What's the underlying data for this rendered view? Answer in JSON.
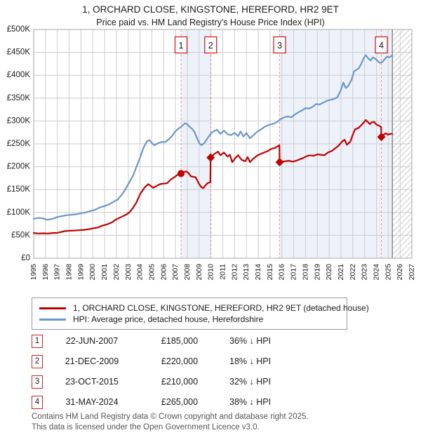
{
  "page": {
    "title": "1, ORCHARD CLOSE, KINGSTONE, HEREFORD, HR2 9ET",
    "subtitle": "Price paid vs. HM Land Registry's House Price Index (HPI)"
  },
  "legend": {
    "series1": "1, ORCHARD CLOSE, KINGSTONE, HEREFORD, HR2 9ET (detached house)",
    "series2": "HPI: Average price, detached house, Herefordshire"
  },
  "transactions": [
    {
      "num": "1",
      "date": "22-JUN-2007",
      "price": "£185,000",
      "vs_hpi": "36% ↓ HPI"
    },
    {
      "num": "2",
      "date": "21-DEC-2009",
      "price": "£220,000",
      "vs_hpi": "18% ↓ HPI"
    },
    {
      "num": "3",
      "date": "23-OCT-2015",
      "price": "£210,000",
      "vs_hpi": "32% ↓ HPI"
    },
    {
      "num": "4",
      "date": "31-MAY-2024",
      "price": "£265,000",
      "vs_hpi": "38% ↓ HPI"
    }
  ],
  "footer": {
    "line1": "Contains HM Land Registry data © Crown copyright and database right 2025.",
    "line2": "This data is licensed under the Open Government Licence v3.0."
  },
  "chart_data": {
    "type": "line",
    "title": "1, ORCHARD CLOSE, KINGSTONE, HEREFORD, HR2 9ET",
    "subtitle": "Price paid vs. HM Land Registry's House Price Index (HPI)",
    "xlim": [
      1995,
      2027
    ],
    "ylim": [
      0,
      500000
    ],
    "grid": true,
    "legend_position": "bottom",
    "xticks": [
      1995,
      1996,
      1997,
      1998,
      1999,
      2000,
      2001,
      2002,
      2003,
      2004,
      2005,
      2006,
      2007,
      2008,
      2009,
      2010,
      2011,
      2012,
      2013,
      2014,
      2015,
      2016,
      2017,
      2018,
      2019,
      2020,
      2021,
      2022,
      2023,
      2024,
      2025,
      2026,
      2027
    ],
    "yticks": [
      {
        "value": 0,
        "label": "£0"
      },
      {
        "value": 50000,
        "label": "£50K"
      },
      {
        "value": 100000,
        "label": "£100K"
      },
      {
        "value": 150000,
        "label": "£150K"
      },
      {
        "value": 200000,
        "label": "£200K"
      },
      {
        "value": 250000,
        "label": "£250K"
      },
      {
        "value": 300000,
        "label": "£300K"
      },
      {
        "value": 350000,
        "label": "£350K"
      },
      {
        "value": 400000,
        "label": "£400K"
      },
      {
        "value": 450000,
        "label": "£450K"
      },
      {
        "value": 500000,
        "label": "£500K"
      }
    ],
    "colors": {
      "property": "#c00000",
      "hpi": "#6d96c8",
      "sale_line": "#f28a8a",
      "band": "#edf2fa",
      "grid": "#cccccc",
      "border": "#aaaaaa",
      "hatch": "#c9c9c9",
      "data_end": "#888888",
      "flag_border": "#cc2222"
    },
    "series": [
      {
        "name": "1, ORCHARD CLOSE, KINGSTONE, HEREFORD, HR2 9ET (detached house)",
        "color": "#c00000",
        "points": [
          [
            1995.0,
            55000
          ],
          [
            1995.4,
            54000
          ],
          [
            1995.8,
            54500
          ],
          [
            1996.2,
            54000
          ],
          [
            1996.6,
            55000
          ],
          [
            1997.0,
            55500
          ],
          [
            1997.3,
            57000
          ],
          [
            1997.6,
            59000
          ],
          [
            1998.0,
            60000
          ],
          [
            1998.4,
            60500
          ],
          [
            1998.8,
            61000
          ],
          [
            1999.2,
            62000
          ],
          [
            1999.6,
            63000
          ],
          [
            2000.0,
            65000
          ],
          [
            2000.4,
            67000
          ],
          [
            2000.8,
            71000
          ],
          [
            2001.2,
            74000
          ],
          [
            2001.6,
            78000
          ],
          [
            2002.0,
            85000
          ],
          [
            2002.4,
            90000
          ],
          [
            2002.8,
            95000
          ],
          [
            2003.1,
            100000
          ],
          [
            2003.4,
            110000
          ],
          [
            2003.7,
            122000
          ],
          [
            2004.0,
            140000
          ],
          [
            2004.4,
            155000
          ],
          [
            2004.7,
            162000
          ],
          [
            2004.9,
            158000
          ],
          [
            2005.1,
            154000
          ],
          [
            2005.4,
            158000
          ],
          [
            2005.7,
            162000
          ],
          [
            2006.0,
            163000
          ],
          [
            2006.3,
            164000
          ],
          [
            2006.6,
            172000
          ],
          [
            2006.9,
            177000
          ],
          [
            2007.2,
            183000
          ],
          [
            2007.47,
            185000
          ],
          [
            2007.7,
            188000
          ],
          [
            2007.9,
            190000
          ],
          [
            2008.1,
            186000
          ],
          [
            2008.3,
            179000
          ],
          [
            2008.5,
            178000
          ],
          [
            2008.7,
            177000
          ],
          [
            2009.0,
            162000
          ],
          [
            2009.2,
            155000
          ],
          [
            2009.35,
            153000
          ],
          [
            2009.5,
            158000
          ],
          [
            2009.7,
            164000
          ],
          [
            2009.95,
            166000
          ],
          [
            2009.97,
            220000
          ],
          [
            2010.3,
            228000
          ],
          [
            2010.6,
            233000
          ],
          [
            2010.8,
            225000
          ],
          [
            2011.1,
            231000
          ],
          [
            2011.4,
            222000
          ],
          [
            2011.6,
            226000
          ],
          [
            2011.8,
            210000
          ],
          [
            2012.1,
            220000
          ],
          [
            2012.3,
            225000
          ],
          [
            2012.6,
            215000
          ],
          [
            2012.9,
            212000
          ],
          [
            2013.1,
            221000
          ],
          [
            2013.3,
            210000
          ],
          [
            2013.6,
            218000
          ],
          [
            2013.9,
            224000
          ],
          [
            2014.2,
            228000
          ],
          [
            2014.5,
            231000
          ],
          [
            2014.8,
            234000
          ],
          [
            2015.1,
            239000
          ],
          [
            2015.4,
            241000
          ],
          [
            2015.6,
            244000
          ],
          [
            2015.79,
            247000
          ],
          [
            2015.81,
            210000
          ],
          [
            2016.0,
            211000
          ],
          [
            2016.3,
            212000
          ],
          [
            2016.6,
            213000
          ],
          [
            2016.9,
            211000
          ],
          [
            2017.2,
            213000
          ],
          [
            2017.5,
            216000
          ],
          [
            2017.8,
            219000
          ],
          [
            2018.1,
            223000
          ],
          [
            2018.4,
            225000
          ],
          [
            2018.7,
            224000
          ],
          [
            2019.0,
            227000
          ],
          [
            2019.3,
            226000
          ],
          [
            2019.6,
            225000
          ],
          [
            2019.9,
            231000
          ],
          [
            2020.2,
            234000
          ],
          [
            2020.5,
            240000
          ],
          [
            2020.8,
            246000
          ],
          [
            2021.1,
            255000
          ],
          [
            2021.3,
            259000
          ],
          [
            2021.5,
            248000
          ],
          [
            2021.8,
            255000
          ],
          [
            2022.0,
            270000
          ],
          [
            2022.2,
            282000
          ],
          [
            2022.5,
            285000
          ],
          [
            2022.8,
            293000
          ],
          [
            2023.1,
            302000
          ],
          [
            2023.3,
            297000
          ],
          [
            2023.45,
            293000
          ],
          [
            2023.6,
            297000
          ],
          [
            2023.8,
            298000
          ],
          [
            2024.0,
            292000
          ],
          [
            2024.2,
            290000
          ],
          [
            2024.4,
            287000
          ],
          [
            2024.42,
            265000
          ],
          [
            2024.6,
            270000
          ],
          [
            2024.8,
            273000
          ],
          [
            2025.0,
            270000
          ],
          [
            2025.2,
            272000
          ],
          [
            2025.35,
            272000
          ]
        ]
      },
      {
        "name": "HPI: Average price, detached house, Herefordshire",
        "color": "#6d96c8",
        "points": [
          [
            1995.0,
            86000
          ],
          [
            1995.4,
            88000
          ],
          [
            1995.8,
            87000
          ],
          [
            1996.1,
            84000
          ],
          [
            1996.4,
            85000
          ],
          [
            1996.7,
            87000
          ],
          [
            1997.0,
            90000
          ],
          [
            1997.4,
            92000
          ],
          [
            1997.8,
            94000
          ],
          [
            1998.2,
            95000
          ],
          [
            1998.6,
            96000
          ],
          [
            1999.0,
            98000
          ],
          [
            1999.4,
            100000
          ],
          [
            1999.8,
            103000
          ],
          [
            2000.2,
            106000
          ],
          [
            2000.6,
            111000
          ],
          [
            2001.0,
            114000
          ],
          [
            2001.4,
            118000
          ],
          [
            2001.8,
            124000
          ],
          [
            2002.1,
            128000
          ],
          [
            2002.4,
            137000
          ],
          [
            2002.7,
            148000
          ],
          [
            2003.0,
            162000
          ],
          [
            2003.4,
            180000
          ],
          [
            2003.7,
            200000
          ],
          [
            2004.0,
            220000
          ],
          [
            2004.3,
            242000
          ],
          [
            2004.6,
            256000
          ],
          [
            2004.8,
            258000
          ],
          [
            2005.0,
            252000
          ],
          [
            2005.2,
            247000
          ],
          [
            2005.5,
            251000
          ],
          [
            2005.8,
            254000
          ],
          [
            2006.1,
            254000
          ],
          [
            2006.4,
            259000
          ],
          [
            2006.7,
            267000
          ],
          [
            2007.0,
            278000
          ],
          [
            2007.3,
            284000
          ],
          [
            2007.6,
            290000
          ],
          [
            2007.8,
            295000
          ],
          [
            2008.0,
            293000
          ],
          [
            2008.2,
            287000
          ],
          [
            2008.4,
            283000
          ],
          [
            2008.6,
            276000
          ],
          [
            2008.8,
            264000
          ],
          [
            2009.0,
            252000
          ],
          [
            2009.2,
            247000
          ],
          [
            2009.45,
            252000
          ],
          [
            2009.7,
            262000
          ],
          [
            2009.97,
            272000
          ],
          [
            2010.2,
            277000
          ],
          [
            2010.5,
            281000
          ],
          [
            2010.8,
            272000
          ],
          [
            2011.1,
            279000
          ],
          [
            2011.4,
            271000
          ],
          [
            2011.7,
            269000
          ],
          [
            2012.0,
            274000
          ],
          [
            2012.3,
            267000
          ],
          [
            2012.5,
            277000
          ],
          [
            2012.75,
            266000
          ],
          [
            2013.0,
            274000
          ],
          [
            2013.3,
            262000
          ],
          [
            2013.6,
            269000
          ],
          [
            2013.9,
            276000
          ],
          [
            2014.2,
            281000
          ],
          [
            2014.6,
            288000
          ],
          [
            2015.0,
            292000
          ],
          [
            2015.3,
            294000
          ],
          [
            2015.6,
            298000
          ],
          [
            2015.9,
            304000
          ],
          [
            2016.2,
            308000
          ],
          [
            2016.5,
            310000
          ],
          [
            2016.8,
            308000
          ],
          [
            2017.1,
            314000
          ],
          [
            2017.4,
            319000
          ],
          [
            2017.7,
            323000
          ],
          [
            2018.0,
            328000
          ],
          [
            2018.3,
            327000
          ],
          [
            2018.6,
            331000
          ],
          [
            2018.9,
            337000
          ],
          [
            2019.2,
            336000
          ],
          [
            2019.5,
            340000
          ],
          [
            2019.8,
            344000
          ],
          [
            2020.1,
            346000
          ],
          [
            2020.4,
            348000
          ],
          [
            2020.7,
            352000
          ],
          [
            2021.0,
            368000
          ],
          [
            2021.2,
            384000
          ],
          [
            2021.4,
            372000
          ],
          [
            2021.6,
            376000
          ],
          [
            2021.9,
            390000
          ],
          [
            2022.1,
            408000
          ],
          [
            2022.3,
            412000
          ],
          [
            2022.5,
            415000
          ],
          [
            2022.7,
            424000
          ],
          [
            2022.9,
            436000
          ],
          [
            2023.1,
            444000
          ],
          [
            2023.3,
            437000
          ],
          [
            2023.5,
            432000
          ],
          [
            2023.7,
            439000
          ],
          [
            2023.9,
            436000
          ],
          [
            2024.1,
            431000
          ],
          [
            2024.3,
            427000
          ],
          [
            2024.5,
            429000
          ],
          [
            2024.7,
            435000
          ],
          [
            2024.9,
            441000
          ],
          [
            2025.1,
            439000
          ],
          [
            2025.35,
            444000
          ]
        ]
      }
    ],
    "sales": [
      {
        "label": "1",
        "year": 2007.47,
        "price": 185000,
        "marker": "circle"
      },
      {
        "label": "2",
        "year": 2009.97,
        "price": 220000,
        "marker": "diamond"
      },
      {
        "label": "3",
        "year": 2015.81,
        "price": 210000,
        "marker": "diamond"
      },
      {
        "label": "4",
        "year": 2024.42,
        "price": 265000,
        "marker": "diamond"
      }
    ],
    "shaded_bands": [
      [
        2007.47,
        2009.97
      ],
      [
        2015.81,
        2025.35
      ]
    ],
    "hatched_region": [
      2025.35,
      2027
    ],
    "data_end_year": 2025.35
  }
}
